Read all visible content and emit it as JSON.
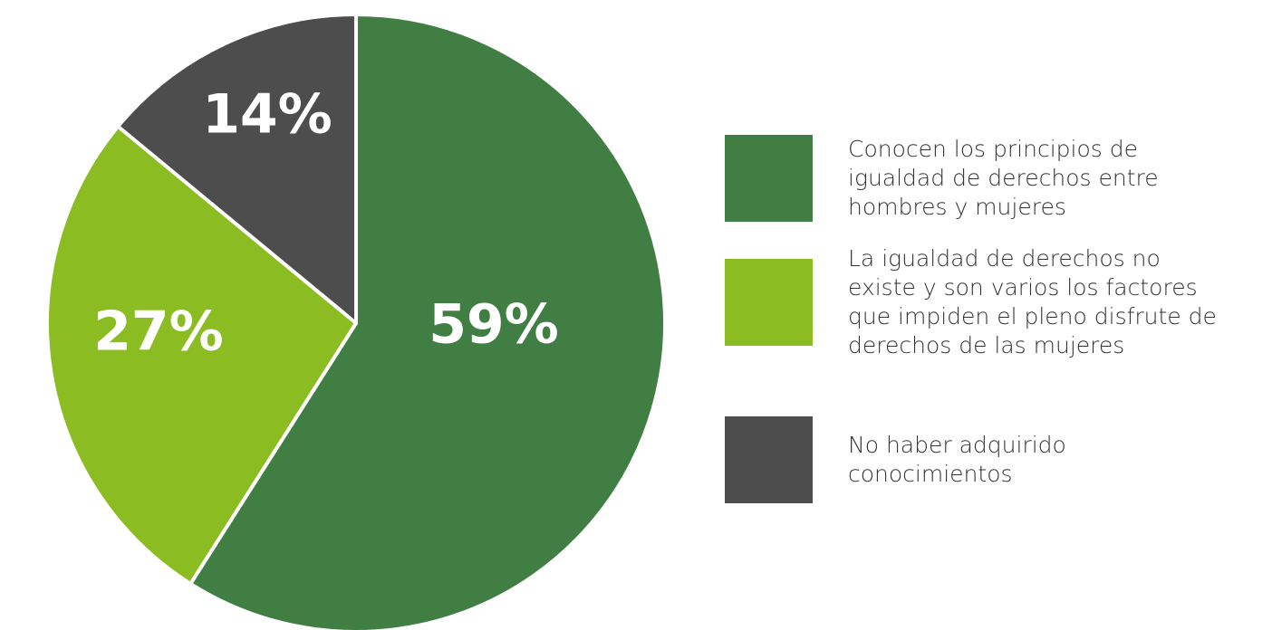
{
  "chart_data": {
    "type": "pie",
    "categories": [
      "Conocen los principios de igualdad de derechos entre hombres y mujeres",
      "La igualdad de derechos no existe y son varios los factores que impiden el pleno disfrute de derechos de las mujeres",
      "No haber adquirido conocimientos"
    ],
    "values": [
      59,
      27,
      14
    ],
    "value_labels": [
      "59%",
      "27%",
      "14%"
    ],
    "colors": [
      "#417e44",
      "#8bbd22",
      "#4d4d4d"
    ],
    "legend": "right"
  }
}
